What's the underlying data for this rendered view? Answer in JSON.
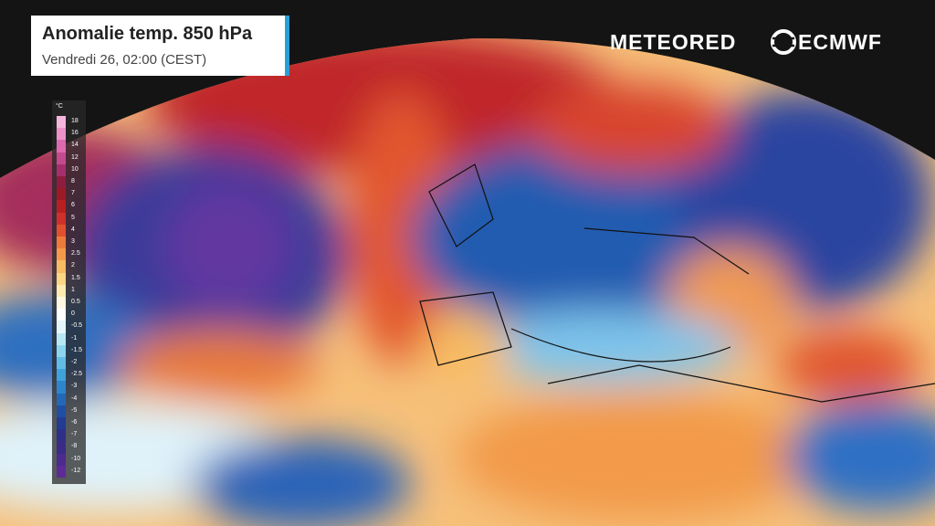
{
  "header": {
    "title": "Anomalie temp. 850 hPa",
    "subtitle": "Vendredi 26, 02:00 (CEST)"
  },
  "logos": {
    "provider": "METEORED",
    "model": "ECMWF"
  },
  "legend": {
    "unit": "°C",
    "levels": [
      18,
      16,
      14,
      12,
      10,
      8,
      7,
      6,
      5,
      4,
      3,
      2.5,
      2,
      1.5,
      1,
      0.5,
      0,
      -0.5,
      -1,
      -1.5,
      -2,
      -2.5,
      -3,
      -4,
      -5,
      -6,
      -7,
      -8,
      -10,
      -12
    ],
    "colors": [
      "#f4b6dc",
      "#ec92c8",
      "#dd6aae",
      "#c44a90",
      "#a52f6c",
      "#8c1d3e",
      "#9c1a26",
      "#b81f22",
      "#d0302a",
      "#e0502f",
      "#ec7a3a",
      "#f29a4a",
      "#f7bb62",
      "#fbd685",
      "#fdebb0",
      "#fff7e0",
      "#ffffff",
      "#e4f6fb",
      "#b8e7f4",
      "#8dd4ee",
      "#62bde6",
      "#3fa2da",
      "#2d86cb",
      "#2368b6",
      "#1f4ea3",
      "#243b92",
      "#2e2f87",
      "#3a2b86",
      "#4c2a8e",
      "#5e2a96"
    ]
  }
}
